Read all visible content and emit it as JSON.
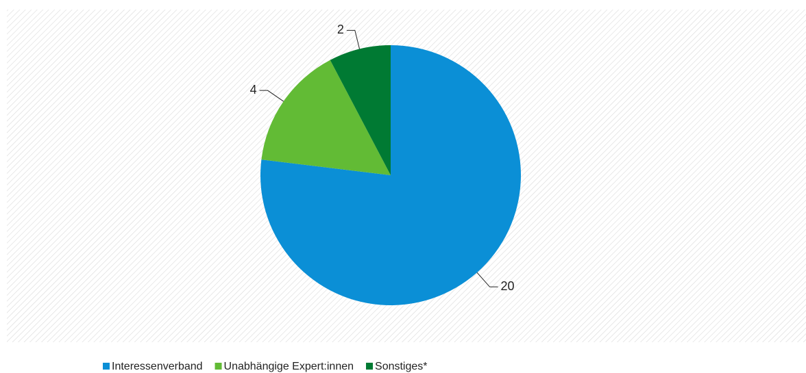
{
  "chart_data": {
    "type": "pie",
    "categories": [
      "Interessenverband",
      "Unabhängige Expert:innen",
      "Sonstiges*"
    ],
    "values": [
      20,
      4,
      2
    ],
    "colors": [
      "#0b8fd6",
      "#62bb35",
      "#007a33"
    ]
  }
}
